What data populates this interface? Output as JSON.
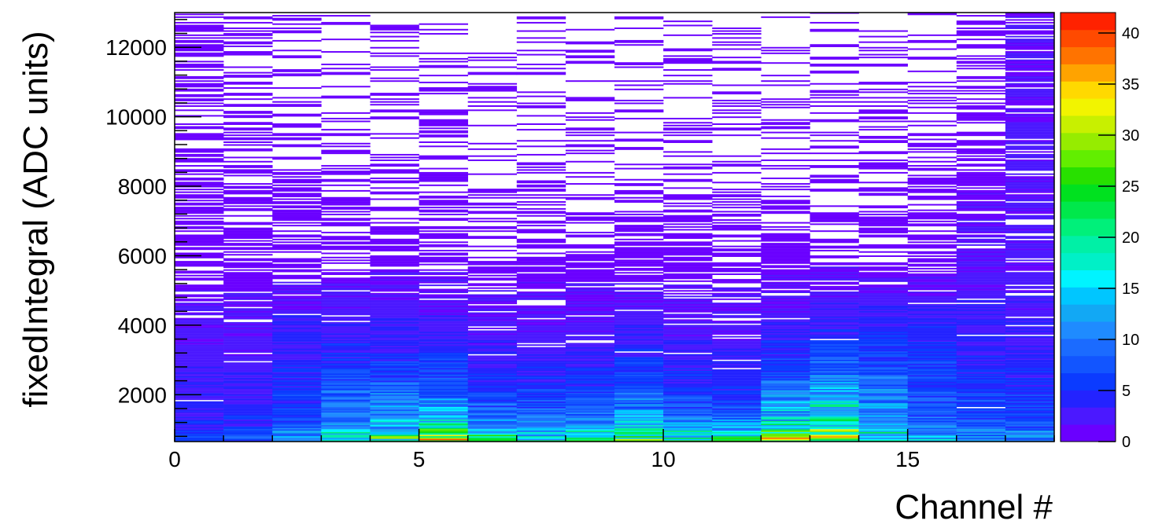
{
  "chart_data": {
    "type": "heatmap",
    "xlabel": "Channel #",
    "ylabel": "fixedIntegral (ADC units)",
    "xlim": [
      0,
      18
    ],
    "ylim": [
      650,
      13000
    ],
    "x_ticks": [
      0,
      5,
      10,
      15
    ],
    "y_ticks": [
      2000,
      4000,
      6000,
      8000,
      10000,
      12000
    ],
    "colorbar": {
      "range": [
        0,
        42
      ],
      "ticks": [
        0,
        5,
        10,
        15,
        20,
        25,
        30,
        35,
        40
      ],
      "palette": [
        "#6a00ff",
        "#4b18ff",
        "#2323ff",
        "#0b3bff",
        "#1255ff",
        "#1b6bff",
        "#1f8bff",
        "#12a8f4",
        "#00c6ff",
        "#00f4ff",
        "#00f0c7",
        "#00f0a6",
        "#00f07a",
        "#00e84b",
        "#00e11f",
        "#28e000",
        "#62ee00",
        "#96ec00",
        "#c8f000",
        "#f2f400",
        "#ffd900",
        "#ffa300",
        "#ff7300",
        "#ff4a00",
        "#ff2200"
      ]
    },
    "grid": false,
    "legend": "none",
    "bins": {
      "x_bin_width": 1,
      "n_channels": 18,
      "y_bin_width": 40,
      "cells": [
        {
          "channel": 0,
          "intensity": [
            5,
            3,
            2,
            1,
            1,
            0.6
          ]
        },
        {
          "channel": 1,
          "intensity": [
            6,
            3,
            2,
            1,
            0.6,
            0.3
          ]
        },
        {
          "channel": 2,
          "intensity": [
            9,
            5,
            3,
            1,
            0.5,
            0.2
          ]
        },
        {
          "channel": 3,
          "intensity": [
            14,
            8,
            3,
            1,
            0.4,
            0.2
          ]
        },
        {
          "channel": 4,
          "intensity": [
            18,
            9,
            3,
            1,
            0.3,
            0.2
          ]
        },
        {
          "channel": 5,
          "intensity": [
            26,
            9,
            3,
            1,
            0.5,
            0.2
          ]
        },
        {
          "channel": 6,
          "intensity": [
            18,
            6,
            2,
            1,
            0.3,
            0.2
          ]
        },
        {
          "channel": 7,
          "intensity": [
            14,
            6,
            2,
            1,
            0.3,
            0.2
          ]
        },
        {
          "channel": 8,
          "intensity": [
            16,
            6,
            2,
            1,
            0.3,
            0.2
          ]
        },
        {
          "channel": 9,
          "intensity": [
            20,
            8,
            3,
            1,
            0.4,
            0.2
          ]
        },
        {
          "channel": 10,
          "intensity": [
            16,
            6,
            2,
            1,
            0.3,
            0.2
          ]
        },
        {
          "channel": 11,
          "intensity": [
            18,
            5,
            2,
            1,
            0.3,
            0.2
          ]
        },
        {
          "channel": 12,
          "intensity": [
            24,
            10,
            3,
            1,
            0.3,
            0.2
          ]
        },
        {
          "channel": 13,
          "intensity": [
            22,
            14,
            4,
            1,
            0.3,
            0.2
          ]
        },
        {
          "channel": 14,
          "intensity": [
            14,
            10,
            4,
            1,
            0.4,
            0.2
          ]
        },
        {
          "channel": 15,
          "intensity": [
            10,
            7,
            4,
            1,
            0.5,
            0.3
          ]
        },
        {
          "channel": 16,
          "intensity": [
            8,
            6,
            3,
            2,
            1,
            0.5
          ]
        },
        {
          "channel": 17,
          "intensity": [
            8,
            5,
            3,
            2,
            2,
            1.5
          ]
        }
      ]
    }
  }
}
